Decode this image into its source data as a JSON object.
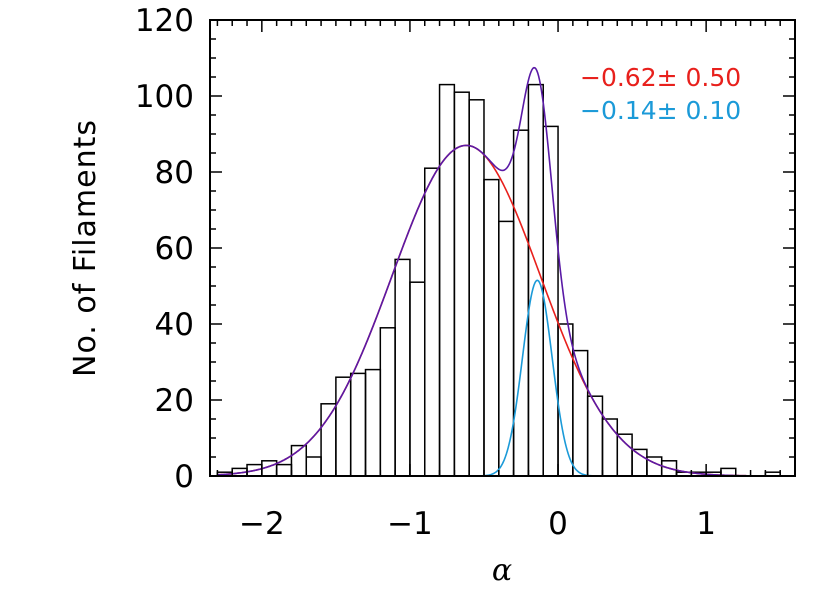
{
  "chart_data": {
    "type": "bar",
    "xlabel": "α",
    "ylabel": "No. of Filaments",
    "xlim": [
      -2.35,
      1.6
    ],
    "ylim": [
      0,
      120
    ],
    "xticks": [
      -2,
      -1,
      0,
      1
    ],
    "xtick_labels": [
      "−2",
      "−1",
      "0",
      "1"
    ],
    "yticks": [
      0,
      20,
      40,
      60,
      80,
      100,
      120
    ],
    "ytick_labels": [
      "0",
      "20",
      "40",
      "60",
      "80",
      "100",
      "120"
    ],
    "bin_width": 0.1,
    "bins": [
      {
        "left": -2.3,
        "value": 1
      },
      {
        "left": -2.2,
        "value": 2
      },
      {
        "left": -2.1,
        "value": 3
      },
      {
        "left": -2.0,
        "value": 4
      },
      {
        "left": -1.9,
        "value": 3
      },
      {
        "left": -1.8,
        "value": 8
      },
      {
        "left": -1.7,
        "value": 5
      },
      {
        "left": -1.6,
        "value": 19
      },
      {
        "left": -1.5,
        "value": 26
      },
      {
        "left": -1.4,
        "value": 27
      },
      {
        "left": -1.3,
        "value": 28
      },
      {
        "left": -1.2,
        "value": 39
      },
      {
        "left": -1.1,
        "value": 57
      },
      {
        "left": -1.0,
        "value": 51
      },
      {
        "left": -0.9,
        "value": 81
      },
      {
        "left": -0.8,
        "value": 103
      },
      {
        "left": -0.7,
        "value": 101
      },
      {
        "left": -0.6,
        "value": 99
      },
      {
        "left": -0.5,
        "value": 78
      },
      {
        "left": -0.4,
        "value": 67
      },
      {
        "left": -0.3,
        "value": 91
      },
      {
        "left": -0.2,
        "value": 103
      },
      {
        "left": -0.1,
        "value": 92
      },
      {
        "left": 0.0,
        "value": 40
      },
      {
        "left": 0.1,
        "value": 33
      },
      {
        "left": 0.2,
        "value": 21
      },
      {
        "left": 0.3,
        "value": 15
      },
      {
        "left": 0.4,
        "value": 11
      },
      {
        "left": 0.5,
        "value": 7
      },
      {
        "left": 0.6,
        "value": 5
      },
      {
        "left": 0.7,
        "value": 4
      },
      {
        "left": 0.8,
        "value": 1
      },
      {
        "left": 0.9,
        "value": 1
      },
      {
        "left": 1.0,
        "value": 1
      },
      {
        "left": 1.1,
        "value": 2
      },
      {
        "left": 1.2,
        "value": 0
      },
      {
        "left": 1.3,
        "value": 0
      },
      {
        "left": 1.4,
        "value": 1
      }
    ],
    "fits": [
      {
        "label": "−0.62± 0.50",
        "mean": -0.62,
        "sigma": 0.5,
        "amplitude": 87,
        "color": "#e8201c"
      },
      {
        "label": "−0.14± 0.10",
        "mean": -0.14,
        "sigma": 0.1,
        "amplitude": 51.5,
        "color": "#1b9ad8"
      }
    ],
    "total_fit_color": "#5a1aa6",
    "grid": false
  }
}
